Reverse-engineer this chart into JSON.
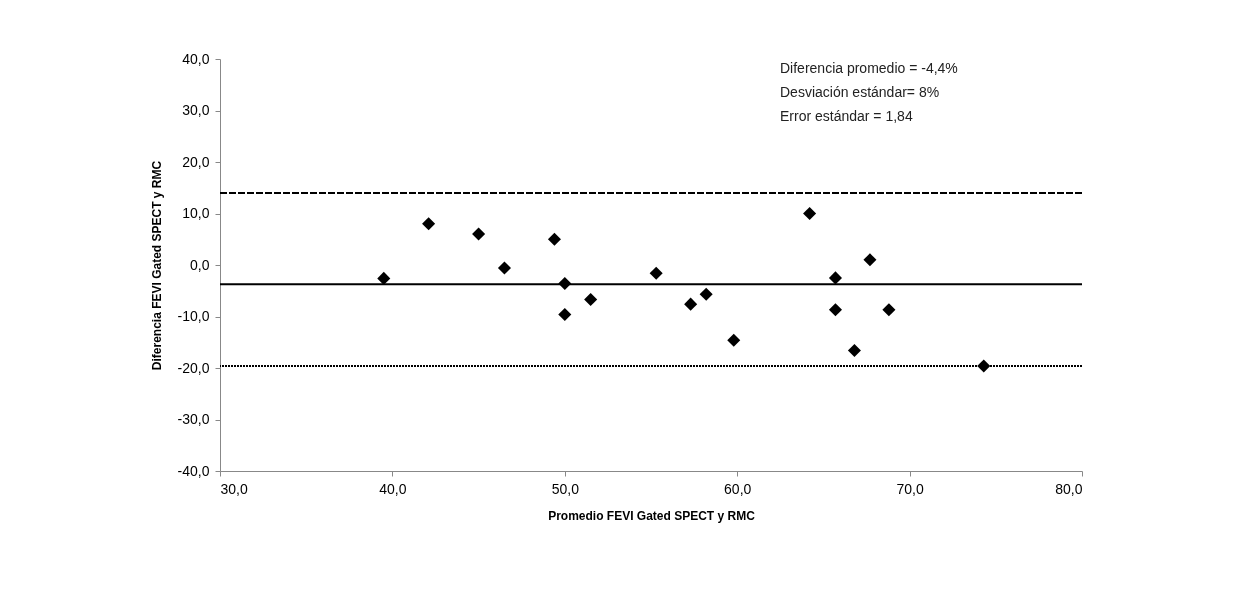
{
  "chart_data": {
    "type": "scatter",
    "xlabel": "Promedio FEVI Gated SPECT y RMC",
    "ylabel": "Diferencia FEVI Gated SPECT y RMC",
    "annotations": [
      "Diferencia promedio = -4,4%",
      "Desviación estándar= 8%",
      "Error estándar = 1,84"
    ],
    "x": [
      39.5,
      42.1,
      45.0,
      46.5,
      49.4,
      50.0,
      50.0,
      51.5,
      55.3,
      57.3,
      58.2,
      59.8,
      64.2,
      65.7,
      65.7,
      66.8,
      67.7,
      68.8,
      74.3
    ],
    "series": [
      {
        "color": "#000000",
        "values": [
          -2.6,
          8.0,
          6.0,
          -0.6,
          5.0,
          -3.6,
          -9.6,
          -6.7,
          -1.6,
          -7.6,
          -5.7,
          -14.6,
          10.0,
          -2.5,
          -8.7,
          -16.6,
          1.0,
          -8.7,
          -19.6
        ]
      }
    ],
    "marker": "diamond",
    "xlim": [
      30,
      80
    ],
    "xticks": [
      {
        "value": 30,
        "label": "30,0"
      },
      {
        "value": 40,
        "label": "40,0"
      },
      {
        "value": 50,
        "label": "50,0"
      },
      {
        "value": 60,
        "label": "60,0"
      },
      {
        "value": 70,
        "label": "70,0"
      },
      {
        "value": 80,
        "label": "80,0"
      }
    ],
    "ylim": [
      -40,
      40
    ],
    "yticks": [
      {
        "value": -40,
        "label": "-40,0"
      },
      {
        "value": -30,
        "label": "-30,0"
      },
      {
        "value": -20,
        "label": "-20,0"
      },
      {
        "value": -10,
        "label": "-10,0"
      },
      {
        "value": 0,
        "label": "0,0"
      },
      {
        "value": 10,
        "label": "10,0"
      },
      {
        "value": 20,
        "label": "20,0"
      },
      {
        "value": 30,
        "label": "30,0"
      },
      {
        "value": 40,
        "label": "40,0"
      }
    ],
    "ref_lines": [
      {
        "axis": "y",
        "value": 14.0,
        "label": null,
        "line_style": "dashed",
        "color": "#000000"
      },
      {
        "axis": "y",
        "value": -3.75,
        "label": null,
        "line_style": "solid",
        "color": "#000000"
      },
      {
        "axis": "y",
        "value": -19.6,
        "label": null,
        "line_style": "dotted",
        "color": "#000000"
      }
    ],
    "grid": false
  }
}
